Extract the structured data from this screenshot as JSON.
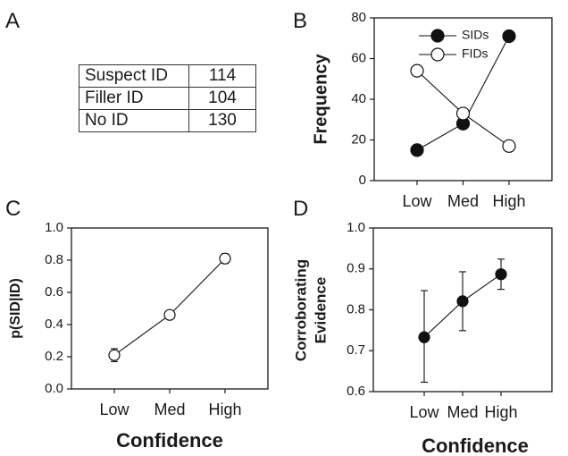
{
  "panel_labels": {
    "a": "A",
    "b": "B",
    "c": "C",
    "d": "D"
  },
  "chart_data": [
    {
      "panel": "A",
      "type": "table",
      "rows": [
        {
          "label": "Suspect ID",
          "value": "114"
        },
        {
          "label": "Filler ID",
          "value": "104"
        },
        {
          "label": "No ID",
          "value": "130"
        }
      ]
    },
    {
      "panel": "B",
      "type": "line",
      "categories": [
        "Low",
        "Med",
        "High"
      ],
      "ylabel": "Frequency",
      "ylim": [
        0,
        80
      ],
      "yticks": [
        "0",
        "20",
        "40",
        "60",
        "80"
      ],
      "legend_position": "top-right",
      "series": [
        {
          "name": "SIDs",
          "values": [
            15,
            28,
            71
          ],
          "marker": "filled-circle",
          "color": "#111111"
        },
        {
          "name": "FIDs",
          "values": [
            54,
            33,
            17
          ],
          "marker": "open-circle",
          "color": "#111111"
        }
      ]
    },
    {
      "panel": "C",
      "type": "line",
      "categories": [
        "Low",
        "Med",
        "High"
      ],
      "values": [
        0.21,
        0.46,
        0.81
      ],
      "errors": [
        0.04,
        0.02,
        0.03
      ],
      "xlabel": "Confidence",
      "ylabel": "p(SID|ID)",
      "ylim": [
        0,
        1
      ],
      "yticks": [
        "0.0",
        "0.2",
        "0.4",
        "0.6",
        "0.8",
        "1.0"
      ],
      "marker": "open-circle"
    },
    {
      "panel": "D",
      "type": "line",
      "categories": [
        "Low",
        "Med",
        "High"
      ],
      "values": [
        0.733,
        0.821,
        0.887
      ],
      "errors_low": [
        0.623,
        0.749,
        0.85
      ],
      "errors_high": [
        0.847,
        0.893,
        0.924
      ],
      "xlabel": "Confidence",
      "ylabel_lines": [
        "Corroborating",
        "Evidence"
      ],
      "ylim": [
        0.6,
        1.0
      ],
      "yticks": [
        "0.6",
        "0.7",
        "0.8",
        "0.9",
        "1.0"
      ],
      "marker": "filled-circle"
    }
  ]
}
